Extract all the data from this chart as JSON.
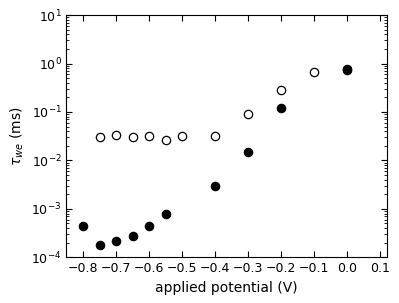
{
  "title": "",
  "xlabel": "applied potential (V)",
  "xlim": [
    -0.85,
    0.12
  ],
  "ylim_log": [
    0.0001,
    10.0
  ],
  "open_circles_x": [
    -0.75,
    -0.7,
    -0.65,
    -0.6,
    -0.55,
    -0.5,
    -0.4,
    -0.3,
    -0.2,
    -0.1,
    0.0
  ],
  "open_circles_y": [
    0.03,
    0.033,
    0.031,
    0.032,
    0.026,
    0.032,
    0.032,
    0.09,
    0.28,
    0.68,
    0.72
  ],
  "filled_circles_x": [
    -0.8,
    -0.75,
    -0.7,
    -0.65,
    -0.6,
    -0.55,
    -0.4,
    -0.3,
    -0.2,
    0.0
  ],
  "filled_circles_y": [
    0.00045,
    0.00018,
    0.00022,
    0.00028,
    0.00045,
    0.0008,
    0.003,
    0.015,
    0.12,
    0.78
  ],
  "open_color": "white",
  "filled_color": "black",
  "edge_color": "black",
  "marker_size": 6,
  "bg_color": "#ffffff",
  "axis_bg": "white",
  "tick_labelsize": 9,
  "label_fontsize": 10
}
